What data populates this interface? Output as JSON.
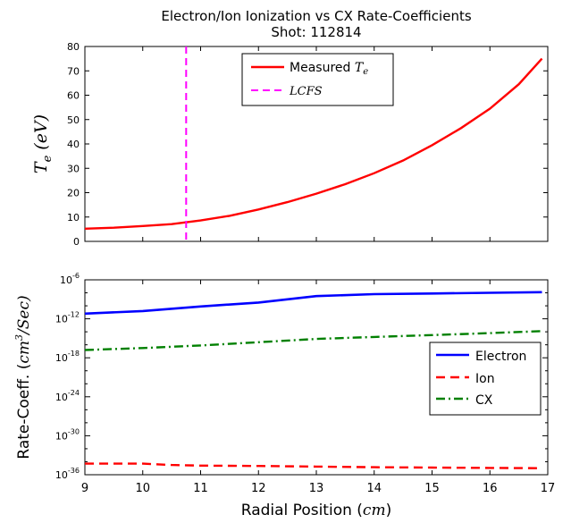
{
  "title_line1": "Electron/Ion Ionization vs CX Rate-Coefficients",
  "title_line2": "Shot: 112814",
  "top_ylabel_main": "T",
  "top_ylabel_sub": "e",
  "top_ylabel_unit": "(eV)",
  "bottom_ylabel_text": "Rate-Coeff. (",
  "bottom_ylabel_unit": "cm",
  "bottom_ylabel_exp": "3",
  "bottom_ylabel_rest": "/Sec)",
  "xlabel_text": "Radial Position (",
  "xlabel_unit": "cm",
  "xlabel_close": ")",
  "legend_top": {
    "measured_prefix": "Measured ",
    "measured_T": "T",
    "measured_sub": "e",
    "lcfs": "LCFS"
  },
  "legend_bottom": {
    "electron": "Electron",
    "ion": "Ion",
    "cx": "CX"
  },
  "colors": {
    "measured": "#ff0000",
    "lcfs": "#ff00ff",
    "electron": "#0000ff",
    "ion": "#ff0000",
    "cx": "#008000"
  },
  "chart_data": [
    {
      "type": "line",
      "title": "Electron/Ion Ionization vs CX Rate-Coefficients",
      "subtitle": "Shot: 112814",
      "xlim": [
        9,
        17
      ],
      "ylim": [
        0,
        80
      ],
      "xticks": [
        9,
        10,
        11,
        12,
        13,
        14,
        15,
        16,
        17
      ],
      "yticks": [
        0,
        10,
        20,
        30,
        40,
        50,
        60,
        70,
        80
      ],
      "legend_position": "top-center",
      "series": [
        {
          "name": "Measured Te",
          "style": "solid",
          "x": [
            9,
            9.5,
            10,
            10.5,
            11,
            11.5,
            12,
            12.5,
            13,
            13.5,
            14,
            14.5,
            15,
            15.5,
            16,
            16.5,
            16.9
          ],
          "y": [
            5.2,
            5.6,
            6.3,
            7.1,
            8.6,
            10.5,
            13.1,
            16.1,
            19.6,
            23.5,
            28,
            33.2,
            39.5,
            46.5,
            54.5,
            64.5,
            75
          ]
        }
      ],
      "vlines": [
        {
          "name": "LCFS",
          "x": 10.75,
          "style": "dashed"
        }
      ]
    },
    {
      "type": "line",
      "xlabel": "Radial Position (cm)",
      "ylabel": "Rate-Coeff. (cm^3/Sec)",
      "xlim": [
        9,
        17
      ],
      "ylim_log10": [
        -36,
        -6
      ],
      "xticks": [
        9,
        10,
        11,
        12,
        13,
        14,
        15,
        16,
        17
      ],
      "ytick_exponents": [
        -36,
        -30,
        -24,
        -18,
        -12,
        -6
      ],
      "legend_position": "right",
      "series": [
        {
          "name": "Electron",
          "style": "solid",
          "x": [
            9,
            10,
            11,
            12,
            13,
            14,
            15,
            16,
            16.9
          ],
          "log10_y": [
            -11.2,
            -10.8,
            -10.1,
            -9.5,
            -8.5,
            -8.2,
            -8.1,
            -8.0,
            -7.9
          ]
        },
        {
          "name": "Ion",
          "style": "dashed",
          "x": [
            9,
            10,
            10.5,
            11,
            12,
            13,
            14,
            15,
            16,
            16.9
          ],
          "log10_y": [
            -34.3,
            -34.3,
            -34.5,
            -34.6,
            -34.65,
            -34.75,
            -34.85,
            -34.9,
            -34.95,
            -35.0
          ]
        },
        {
          "name": "CX",
          "style": "dashdot",
          "x": [
            9,
            10,
            11,
            12,
            13,
            14,
            15,
            16,
            16.9
          ],
          "log10_y": [
            -16.8,
            -16.5,
            -16.1,
            -15.6,
            -15.1,
            -14.8,
            -14.5,
            -14.2,
            -13.9
          ]
        }
      ]
    }
  ]
}
